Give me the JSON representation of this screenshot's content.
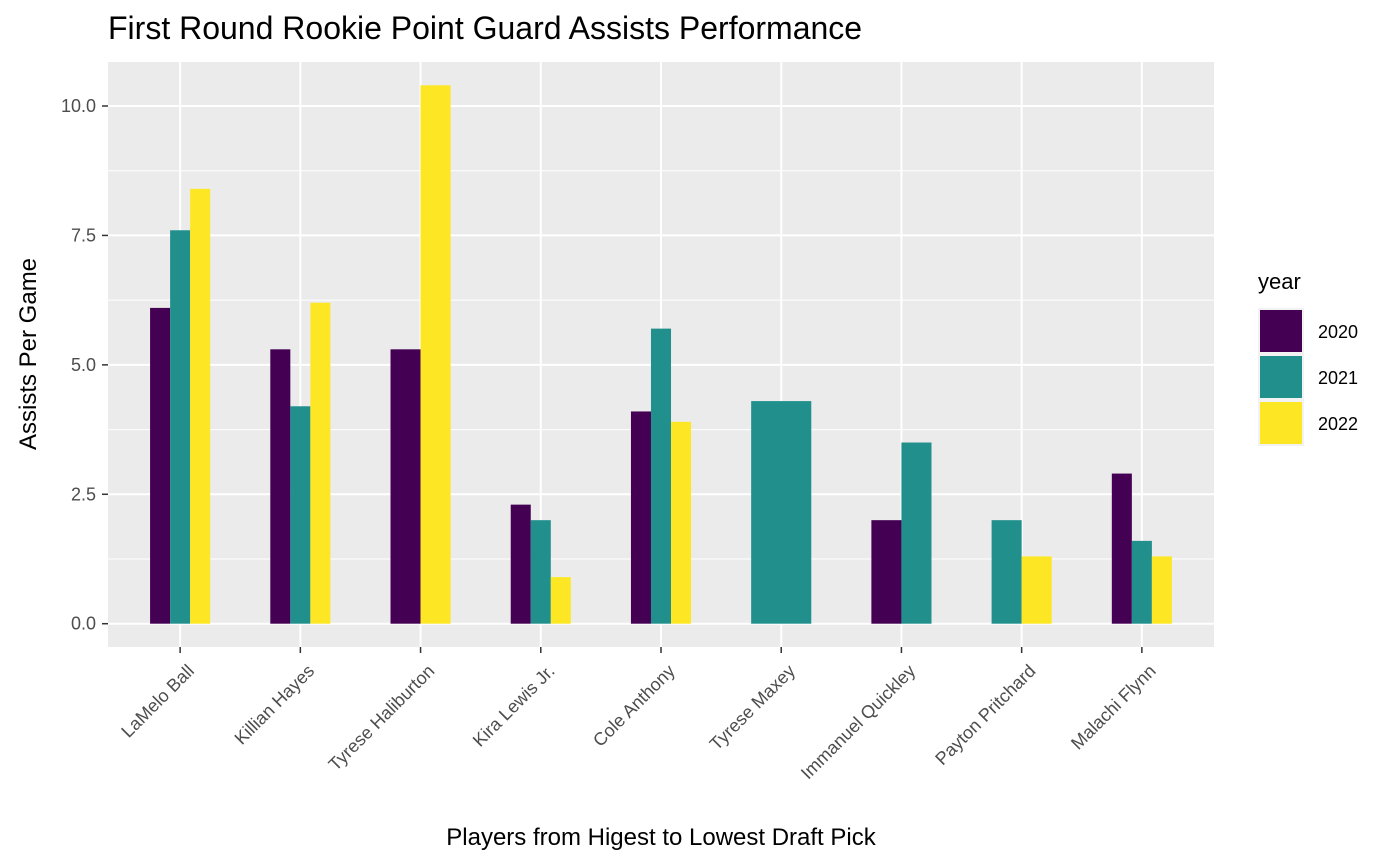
{
  "chart_data": {
    "type": "bar",
    "title": "First Round Rookie Point Guard Assists Performance",
    "xlabel": "Players from Higest to Lowest Draft Pick",
    "ylabel": "Assists Per Game",
    "ylim": [
      -0.45,
      10.85
    ],
    "yticks": [
      0,
      2.5,
      5,
      7.5,
      10
    ],
    "ytick_labels": [
      "0.0",
      "2.5",
      "5.0",
      "7.5",
      "10.0"
    ],
    "grid": true,
    "legend": {
      "title": "year",
      "position": "right"
    },
    "categories": [
      "LaMelo Ball",
      "Killian Hayes",
      "Tyrese Haliburton",
      "Kira Lewis Jr.",
      "Cole Anthony",
      "Tyrese Maxey",
      "Immanuel Quickley",
      "Payton Pritchard",
      "Malachi Flynn"
    ],
    "series": [
      {
        "name": "2020",
        "color": "#440154",
        "values": [
          6.1,
          5.3,
          5.3,
          2.3,
          4.1,
          null,
          2.0,
          null,
          2.9
        ]
      },
      {
        "name": "2021",
        "color": "#21908C",
        "values": [
          7.6,
          4.2,
          null,
          2.0,
          5.7,
          4.3,
          3.5,
          2.0,
          1.6
        ]
      },
      {
        "name": "2022",
        "color": "#FDE725",
        "values": [
          8.4,
          6.2,
          10.4,
          0.9,
          3.9,
          null,
          null,
          1.3,
          1.3
        ]
      }
    ]
  }
}
